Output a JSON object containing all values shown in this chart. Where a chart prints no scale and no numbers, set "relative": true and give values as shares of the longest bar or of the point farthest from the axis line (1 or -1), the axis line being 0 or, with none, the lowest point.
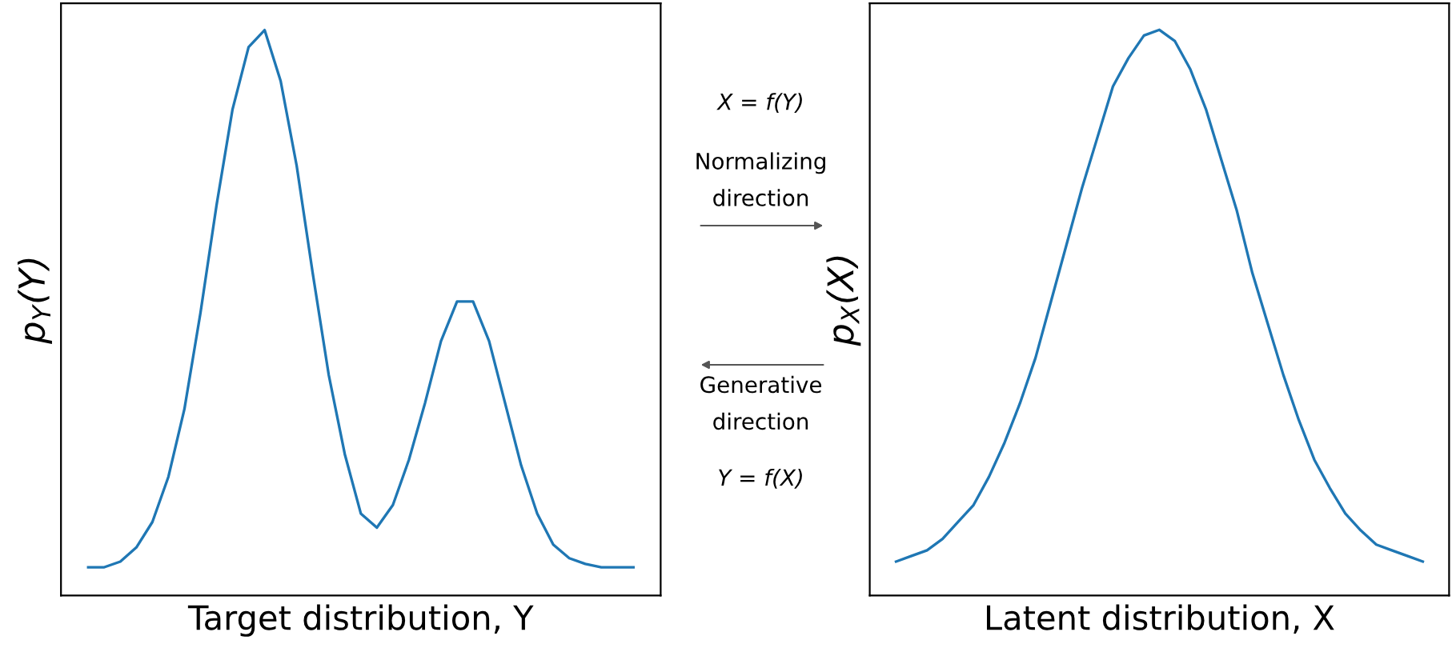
{
  "chart_data": [
    {
      "type": "line",
      "relative": true,
      "xlabel": "Target distribution, Y",
      "ylabel": "p$_{Y}$(Y)",
      "tick_labels": false,
      "categories": [
        null,
        null,
        null,
        null,
        null,
        null,
        null,
        null,
        null,
        null,
        null,
        null,
        null,
        null,
        null,
        null,
        null,
        null,
        null,
        null,
        null,
        null,
        null,
        null,
        null,
        null,
        null,
        null,
        null,
        null,
        null,
        null,
        null,
        null,
        null
      ],
      "series": [
        {
          "color": "#1f77b4",
          "values": [
            0.05,
            0.05,
            0.06,
            0.085,
            0.13,
            0.21,
            0.33,
            0.5,
            0.69,
            0.86,
            0.97,
            1,
            0.91,
            0.76,
            0.57,
            0.39,
            0.25,
            0.145,
            0.12,
            0.16,
            0.24,
            0.34,
            0.45,
            0.52,
            0.52,
            0.45,
            0.34,
            0.23,
            0.145,
            0.09,
            0.066,
            0.056,
            0.05,
            0.05,
            0.05
          ]
        }
      ],
      "annotations": [
        "X = f(Y)",
        "Normalizing\ndirection",
        "Generative\ndirection",
        "Y = f(X)"
      ]
    },
    {
      "type": "line",
      "relative": true,
      "xlabel": "Latent distribution, X",
      "ylabel": "p$_{X}$(X)",
      "tick_labels": false,
      "categories": [
        null,
        null,
        null,
        null,
        null,
        null,
        null,
        null,
        null,
        null,
        null,
        null,
        null,
        null,
        null,
        null,
        null,
        null,
        null,
        null,
        null,
        null,
        null,
        null,
        null,
        null,
        null,
        null,
        null,
        null,
        null,
        null,
        null,
        null,
        null
      ],
      "series": [
        {
          "color": "#1f77b4",
          "values": [
            0.06,
            0.07,
            0.08,
            0.1,
            0.13,
            0.16,
            0.21,
            0.27,
            0.34,
            0.42,
            0.52,
            0.62,
            0.72,
            0.81,
            0.9,
            0.95,
            0.99,
            1,
            0.98,
            0.93,
            0.86,
            0.77,
            0.68,
            0.57,
            0.48,
            0.39,
            0.31,
            0.24,
            0.19,
            0.145,
            0.115,
            0.09,
            0.08,
            0.07,
            0.06
          ]
        }
      ]
    }
  ]
}
